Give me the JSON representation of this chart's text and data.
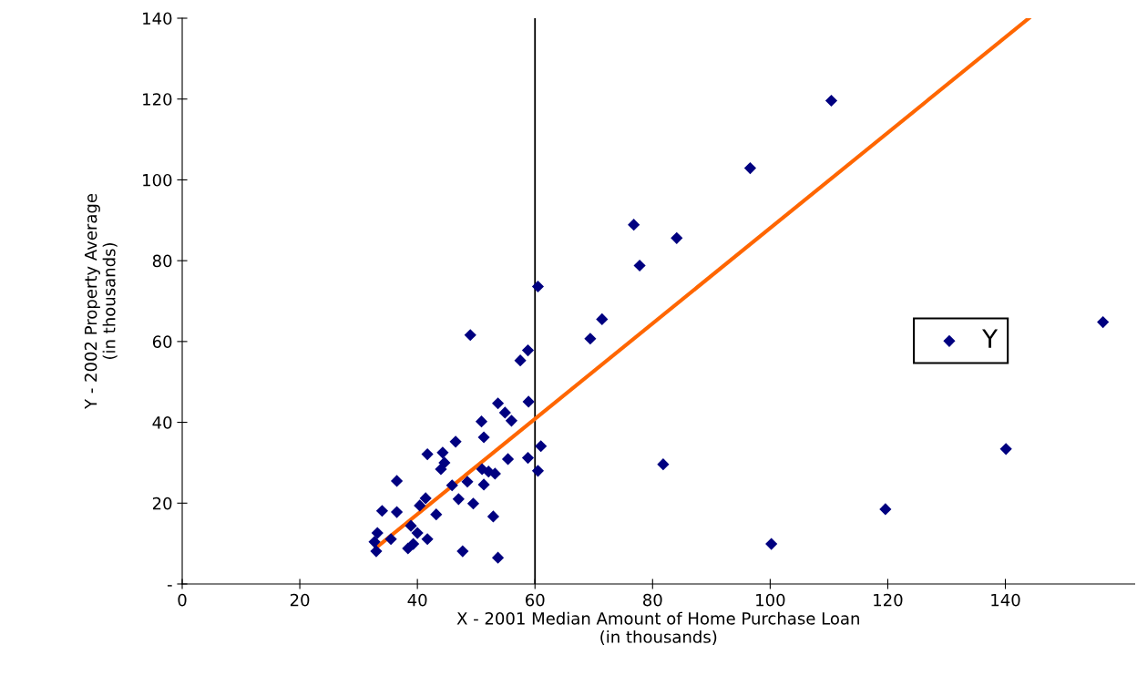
{
  "chart_data": {
    "type": "scatter",
    "xlabel": "X - 2001 Median Amount of Home Purchase Loan\n(in thousands)",
    "ylabel": "Y - 2002 Property Average\n(in thousands)",
    "xlim": [
      0,
      162
    ],
    "xticks": [
      0,
      20,
      40,
      60,
      80,
      100,
      120,
      140
    ],
    "ylim": [
      0,
      140
    ],
    "yticks": [
      {
        "value": 0,
        "label": "-"
      },
      20,
      40,
      60,
      80,
      100,
      120,
      140
    ],
    "grid": false,
    "legend": "right",
    "ref_lines": [
      {
        "axis": "x",
        "value": 60,
        "color": "#000000"
      }
    ],
    "series": [
      {
        "name": "Y",
        "color": "#000080",
        "marker": "diamond",
        "x": [
          60.5,
          49.0,
          58.8,
          57.5,
          53.7,
          58.9,
          54.9,
          56.0,
          50.9,
          51.3,
          46.5,
          61.0,
          41.7,
          44.3,
          44.6,
          44.0,
          55.4,
          58.8,
          60.5,
          52.1,
          51.0,
          53.2,
          51.3,
          48.5,
          45.9,
          47.0,
          49.5,
          41.4,
          40.4,
          43.2,
          36.5,
          34.0,
          36.5,
          52.9,
          33.2,
          32.7,
          33.0,
          35.5,
          38.9,
          40.0,
          41.7,
          38.4,
          39.3,
          47.7,
          53.7,
          69.4,
          71.4,
          76.8,
          77.8,
          84.1,
          81.8,
          96.6,
          110.4,
          100.2,
          119.6,
          140.1,
          156.6
        ],
        "values": [
          73.6,
          61.6,
          57.8,
          55.3,
          44.7,
          45.1,
          42.4,
          40.4,
          40.2,
          36.3,
          35.2,
          34.1,
          32.1,
          32.5,
          30.0,
          28.4,
          30.9,
          31.2,
          28.0,
          27.8,
          28.4,
          27.3,
          24.6,
          25.3,
          24.4,
          21.0,
          19.9,
          21.2,
          19.4,
          17.2,
          25.5,
          18.1,
          17.8,
          16.7,
          12.6,
          10.4,
          8.1,
          11.1,
          14.4,
          12.6,
          11.1,
          8.8,
          9.9,
          8.1,
          6.5,
          60.7,
          65.5,
          88.9,
          78.8,
          85.6,
          29.6,
          102.9,
          119.6,
          9.9,
          18.5,
          33.4,
          64.8
        ]
      },
      {
        "type": "line",
        "color": "#ff6600",
        "x": [
          33,
          144
        ],
        "values": [
          9,
          140
        ]
      }
    ]
  }
}
